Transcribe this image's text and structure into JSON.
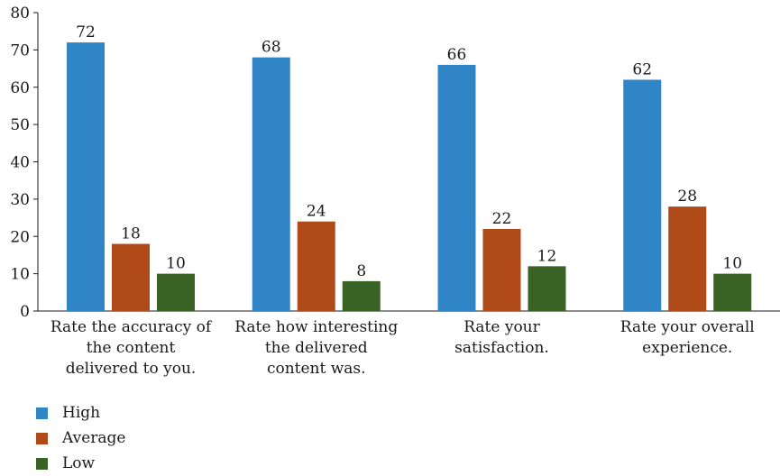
{
  "chart_data": {
    "type": "bar",
    "title": "",
    "xlabel": "",
    "ylabel": "",
    "ylim": [
      0,
      80
    ],
    "yticks": [
      0,
      10,
      20,
      30,
      40,
      50,
      60,
      70,
      80
    ],
    "grid": false,
    "legend_position": "bottom-left",
    "categories": [
      [
        "Rate the accuracy of",
        "the content",
        "delivered to you."
      ],
      [
        "Rate how interesting",
        "the delivered",
        "content was."
      ],
      [
        "Rate your",
        "satisfaction."
      ],
      [
        "Rate your overall",
        "experience."
      ]
    ],
    "series": [
      {
        "name": "High",
        "color": "#2f85c6",
        "values": [
          72,
          68,
          66,
          62
        ]
      },
      {
        "name": "Average",
        "color": "#b04a18",
        "values": [
          18,
          24,
          22,
          28
        ]
      },
      {
        "name": "Low",
        "color": "#3a6224",
        "values": [
          10,
          8,
          12,
          10
        ]
      }
    ]
  }
}
